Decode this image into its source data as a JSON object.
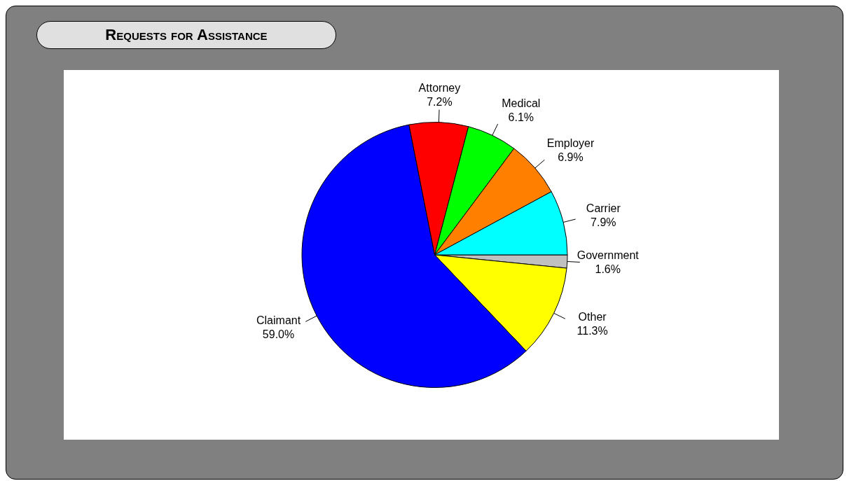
{
  "chart_data": {
    "type": "pie",
    "title": "Requests for Assistance",
    "categories": [
      "Government",
      "Other",
      "Claimant",
      "Attorney",
      "Medical",
      "Employer",
      "Carrier"
    ],
    "values": [
      1.6,
      11.3,
      59.0,
      7.2,
      6.1,
      6.9,
      7.9
    ],
    "value_labels": [
      "1.6%",
      "11.3%",
      "59.0%",
      "7.2%",
      "6.1%",
      "6.9%",
      "7.9%"
    ],
    "colors": [
      "#c0c0c0",
      "#ffff00",
      "#0000ff",
      "#ff0000",
      "#00ff00",
      "#ff8000",
      "#00ffff"
    ],
    "legend": false
  }
}
